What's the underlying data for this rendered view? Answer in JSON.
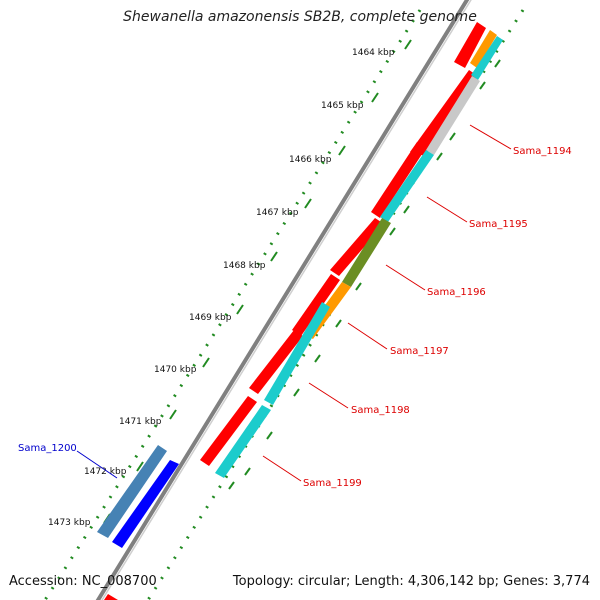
{
  "map": {
    "title": "Shewanella amazonensis SB2B, complete genome",
    "accession": "Accession: NC_008700",
    "summary": "Topology: circular; Length: 4,306,142 bp; Genes: 3,774",
    "ticks": [
      {
        "label": "1464 kbp"
      },
      {
        "label": "1465 kbp"
      },
      {
        "label": "1466 kbp"
      },
      {
        "label": "1467 kbp"
      },
      {
        "label": "1468 kbp"
      },
      {
        "label": "1469 kbp"
      },
      {
        "label": "1470 kbp"
      },
      {
        "label": "1471 kbp"
      },
      {
        "label": "1472 kbp"
      },
      {
        "label": "1473 kbp"
      }
    ],
    "gene_labels": [
      {
        "label": "Sama_1194",
        "color": "#dd0000"
      },
      {
        "label": "Sama_1195",
        "color": "#dd0000"
      },
      {
        "label": "Sama_1196",
        "color": "#dd0000"
      },
      {
        "label": "Sama_1197",
        "color": "#dd0000"
      },
      {
        "label": "Sama_1198",
        "color": "#dd0000"
      },
      {
        "label": "Sama_1199",
        "color": "#dd0000"
      },
      {
        "label": "Sama_1200",
        "color": "#0000cc"
      }
    ],
    "colors": {
      "cds_forward": "#ff0000",
      "cds_reverse": "#0000ff",
      "gene_cyan": "#1ccccc",
      "gene_orange": "#ff9900",
      "gene_olive": "#6b8e23",
      "gene_gray": "#c8c8c8",
      "gene_steel": "#4682b4",
      "tick_green": "#228b22",
      "backbone": "#808080"
    }
  }
}
